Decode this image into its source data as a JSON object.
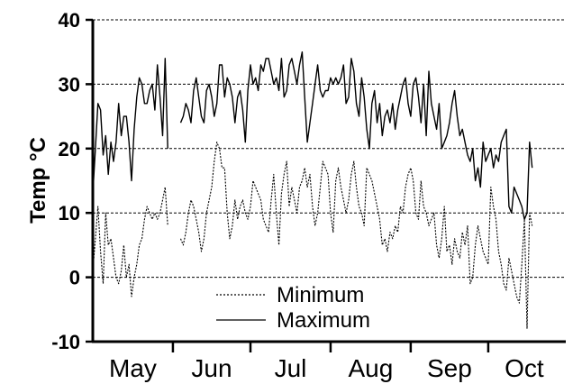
{
  "chart_data": {
    "type": "line",
    "title": "",
    "ylabel": "Temp °C",
    "xlabel": "",
    "ylim": [
      -10,
      40
    ],
    "yticks": [
      -10,
      0,
      10,
      20,
      30,
      40
    ],
    "grid": "horizontal dashed",
    "legend_position": "bottom-center",
    "x_start": "May 1",
    "x_end": "Oct 31",
    "month_labels": [
      "May",
      "Jun",
      "Jul",
      "Aug",
      "Sep",
      "Oct"
    ],
    "month_boundaries": [
      "Jun 1",
      "Jul 1",
      "Aug 1",
      "Sep 1",
      "Oct 1"
    ],
    "series": [
      {
        "name": "Minimum",
        "style": "dotted",
        "color": "#000000",
        "segments": [
          {
            "from": "May 1",
            "values": [
              1,
              6,
              11,
              4,
              -1,
              10,
              5,
              6,
              3,
              0,
              -1,
              1,
              5,
              0,
              2,
              -3,
              0,
              2,
              5,
              6,
              9,
              11,
              10,
              9,
              10,
              9,
              10,
              12,
              14,
              8
            ]
          },
          {
            "from": "Jun 4",
            "values": [
              6,
              5,
              7,
              10,
              12,
              11,
              9,
              7,
              4,
              6,
              10,
              12,
              14,
              18,
              21,
              20,
              17,
              17,
              10,
              6,
              8,
              12,
              9,
              11,
              12,
              10,
              9,
              11,
              15,
              14,
              13,
              12,
              9,
              8,
              7,
              12,
              16,
              10,
              5,
              13,
              16,
              18,
              11,
              14,
              12,
              10,
              14,
              15,
              17,
              14,
              16,
              11,
              8,
              10,
              14,
              18,
              17,
              16,
              10,
              7,
              15,
              17,
              14,
              12,
              10,
              12,
              16,
              18,
              14,
              11,
              10,
              8,
              17,
              16,
              15,
              13,
              11,
              9,
              5,
              6,
              4,
              7,
              6,
              8,
              7,
              11,
              10,
              14,
              16,
              17,
              15,
              10,
              9,
              15,
              11,
              10,
              8,
              9,
              10,
              5,
              3,
              6,
              11,
              4,
              5,
              2,
              6,
              4,
              3,
              7,
              5,
              8,
              -1,
              0,
              5,
              8,
              6,
              4,
              3,
              2,
              14,
              11,
              9,
              4,
              2,
              -1,
              -2,
              3,
              1,
              -1,
              -3,
              -4,
              2,
              9,
              -8,
              10,
              8
            ]
          }
        ]
      },
      {
        "name": "Maximum",
        "style": "solid",
        "color": "#000000",
        "segments": [
          {
            "from": "May 1",
            "values": [
              13,
              20,
              27,
              26,
              19,
              22,
              16,
              21,
              18,
              21,
              27,
              22,
              25,
              25,
              21,
              15,
              23,
              28,
              31,
              30,
              27,
              27,
              29,
              30,
              26,
              33,
              28,
              22,
              34,
              20
            ]
          },
          {
            "from": "Jun 4",
            "values": [
              24,
              25,
              27,
              26,
              24,
              29,
              31,
              28,
              25,
              24,
              29,
              30,
              28,
              25,
              27,
              33,
              33,
              28,
              31,
              30,
              28,
              24,
              28,
              29,
              26,
              21,
              29,
              33,
              30,
              31,
              29,
              33,
              32,
              34,
              34,
              32,
              30,
              31,
              29,
              34,
              28,
              29,
              33,
              34,
              32,
              30,
              33,
              35,
              28,
              21,
              24,
              27,
              30,
              33,
              29,
              28,
              29,
              29,
              31,
              30,
              31,
              30,
              31,
              33,
              27,
              28,
              34,
              32,
              27,
              25,
              31,
              28,
              23,
              20,
              27,
              29,
              24,
              27,
              22,
              25,
              26,
              24,
              27,
              23,
              26,
              28,
              30,
              31,
              27,
              25,
              30,
              31,
              28,
              24,
              30,
              22,
              32,
              27,
              25,
              23,
              27,
              20,
              21,
              22,
              24,
              27,
              29,
              25,
              22,
              23,
              21,
              19,
              18,
              20,
              15,
              17,
              14,
              21,
              18,
              19,
              20,
              17,
              19,
              18,
              21,
              22,
              23,
              11,
              10,
              14,
              13,
              12,
              11,
              9,
              10,
              21,
              17
            ]
          }
        ]
      }
    ]
  }
}
